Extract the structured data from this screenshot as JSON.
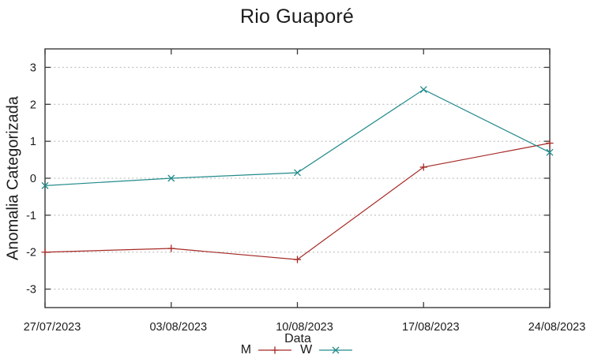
{
  "chart_data": {
    "type": "line",
    "title": "Rio Guaporé",
    "xlabel": "Data",
    "ylabel": "Anomalia Categorizada",
    "categories": [
      "27/07/2023",
      "03/08/2023",
      "10/08/2023",
      "17/08/2023",
      "24/08/2023"
    ],
    "series": [
      {
        "name": "M",
        "color": "#a52a26",
        "marker": "plus",
        "values": [
          -2.0,
          -1.9,
          -2.2,
          0.3,
          0.95
        ]
      },
      {
        "name": "W",
        "color": "#238b8b",
        "marker": "cross",
        "values": [
          -0.2,
          0.0,
          0.15,
          2.4,
          0.7
        ]
      }
    ],
    "ylim": [
      -3.5,
      3.5
    ],
    "yticks": [
      -3,
      -2,
      -1,
      0,
      1,
      2,
      3
    ],
    "grid": "horizontal-dotted",
    "grid_color": "#b4b4b4",
    "frame_color": "#3a3a3a",
    "text_color": "#1c1c1c",
    "legend_position": "bottom-center"
  }
}
